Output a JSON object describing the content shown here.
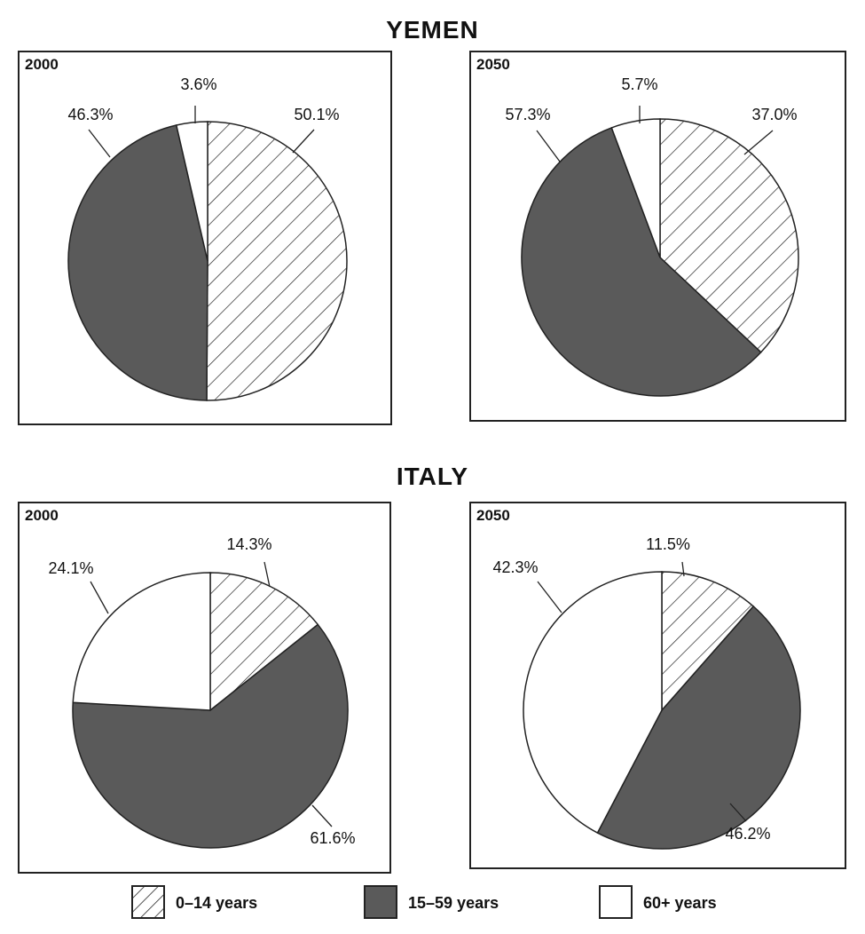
{
  "countries": [
    {
      "name": "YEMEN",
      "panels": [
        {
          "year": "2000"
        },
        {
          "year": "2050"
        }
      ]
    },
    {
      "name": "ITALY",
      "panels": [
        {
          "year": "2000"
        },
        {
          "year": "2050"
        }
      ]
    }
  ],
  "legend": [
    {
      "label": "0–14 years",
      "pattern": "hatch"
    },
    {
      "label": "15–59 years",
      "color": "#5a5a5a"
    },
    {
      "label": "60+ years",
      "color": "#ffffff"
    }
  ],
  "colors": {
    "hatch_stroke": "#222222",
    "dark": "#5a5a5a",
    "light": "#ffffff",
    "outline": "#222222"
  },
  "chart_data": [
    {
      "type": "pie",
      "title": "YEMEN",
      "subtitle": "2000",
      "categories": [
        "0–14 years",
        "15–59 years",
        "60+ years"
      ],
      "values": [
        50.1,
        46.3,
        3.6
      ],
      "labels": [
        "50.1%",
        "46.3%",
        "3.6%"
      ]
    },
    {
      "type": "pie",
      "title": "YEMEN",
      "subtitle": "2050",
      "categories": [
        "0–14 years",
        "15–59 years",
        "60+ years"
      ],
      "values": [
        37.0,
        57.3,
        5.7
      ],
      "labels": [
        "37.0%",
        "57.3%",
        "5.7%"
      ]
    },
    {
      "type": "pie",
      "title": "ITALY",
      "subtitle": "2000",
      "categories": [
        "0–14 years",
        "15–59 years",
        "60+ years"
      ],
      "values": [
        14.3,
        61.6,
        24.1
      ],
      "labels": [
        "14.3%",
        "61.6%",
        "24.1%"
      ]
    },
    {
      "type": "pie",
      "title": "ITALY",
      "subtitle": "2050",
      "categories": [
        "0–14 years",
        "15–59 years",
        "60+ years"
      ],
      "values": [
        11.5,
        46.2,
        42.3
      ],
      "labels": [
        "11.5%",
        "46.2%",
        "42.3%"
      ]
    }
  ]
}
